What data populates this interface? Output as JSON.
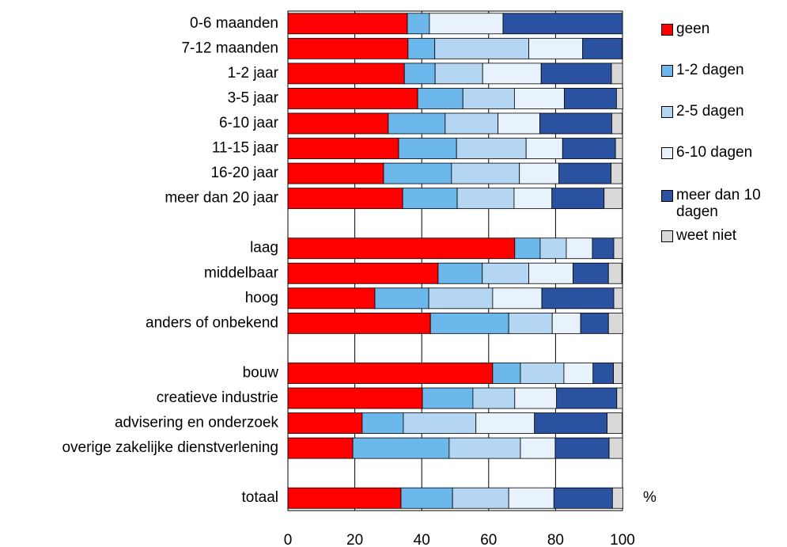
{
  "chart_data": {
    "type": "stacked-bar-horizontal",
    "unit": "%",
    "categories": [
      "0-6 maanden",
      "7-12 maanden",
      "1-2 jaar",
      "3-5 jaar",
      "6-10 jaar",
      "11-15 jaar",
      "16-20 jaar",
      "meer dan 20 jaar",
      null,
      "laag",
      "middelbaar",
      "hoog",
      "anders of onbekend",
      null,
      "bouw",
      "creatieve industrie",
      "advisering en onderzoek",
      "overige zakelijke dienstverlening",
      null,
      "totaal"
    ],
    "series": [
      {
        "name": "geen",
        "color": "#ff0000",
        "values": [
          35.7,
          35.9,
          34.8,
          38.8,
          30.0,
          33.1,
          28.6,
          34.3,
          null,
          67.8,
          44.9,
          26.0,
          42.6,
          null,
          61.2,
          40.2,
          22.2,
          19.4,
          null,
          33.8
        ]
      },
      {
        "name": "1-2 dagen",
        "color": "#6cb8ec",
        "values": [
          6.6,
          8.0,
          9.2,
          13.5,
          17.0,
          17.3,
          20.3,
          16.3,
          null,
          7.6,
          13.2,
          16.1,
          23.4,
          null,
          8.3,
          15.1,
          12.3,
          28.8,
          null,
          15.4
        ]
      },
      {
        "name": "2-5 dagen",
        "color": "#b5d6f2",
        "values": [
          0,
          28.1,
          14.2,
          15.4,
          15.8,
          20.8,
          20.3,
          17.0,
          null,
          7.8,
          13.9,
          19.1,
          13.0,
          null,
          13.0,
          12.5,
          21.7,
          21.3,
          null,
          16.8
        ]
      },
      {
        "name": "6-10 dagen",
        "color": "#e8f2fc",
        "values": [
          22.0,
          16.1,
          17.5,
          14.9,
          12.5,
          10.9,
          11.8,
          11.3,
          null,
          7.8,
          13.2,
          14.7,
          8.5,
          null,
          8.7,
          12.5,
          17.5,
          10.4,
          null,
          13.5
        ]
      },
      {
        "name": "meer dan 10 dagen",
        "color": "#2b52a0",
        "values": [
          35.7,
          11.8,
          21.0,
          15.6,
          21.5,
          15.8,
          15.6,
          15.6,
          null,
          6.4,
          10.6,
          21.5,
          8.3,
          null,
          6.1,
          18.0,
          21.7,
          16.1,
          null,
          17.5
        ]
      },
      {
        "name": "weet niet",
        "color": "#d9d9d9",
        "values": [
          0,
          0,
          3.3,
          1.9,
          3.1,
          2.1,
          3.3,
          5.4,
          null,
          2.6,
          4.0,
          2.6,
          4.3,
          null,
          2.6,
          1.7,
          4.5,
          4.0,
          null,
          3.1
        ]
      }
    ],
    "xlim": [
      0,
      100
    ],
    "xticks": [
      0,
      20,
      40,
      60,
      80,
      100
    ],
    "grid": true,
    "legend": "right"
  }
}
